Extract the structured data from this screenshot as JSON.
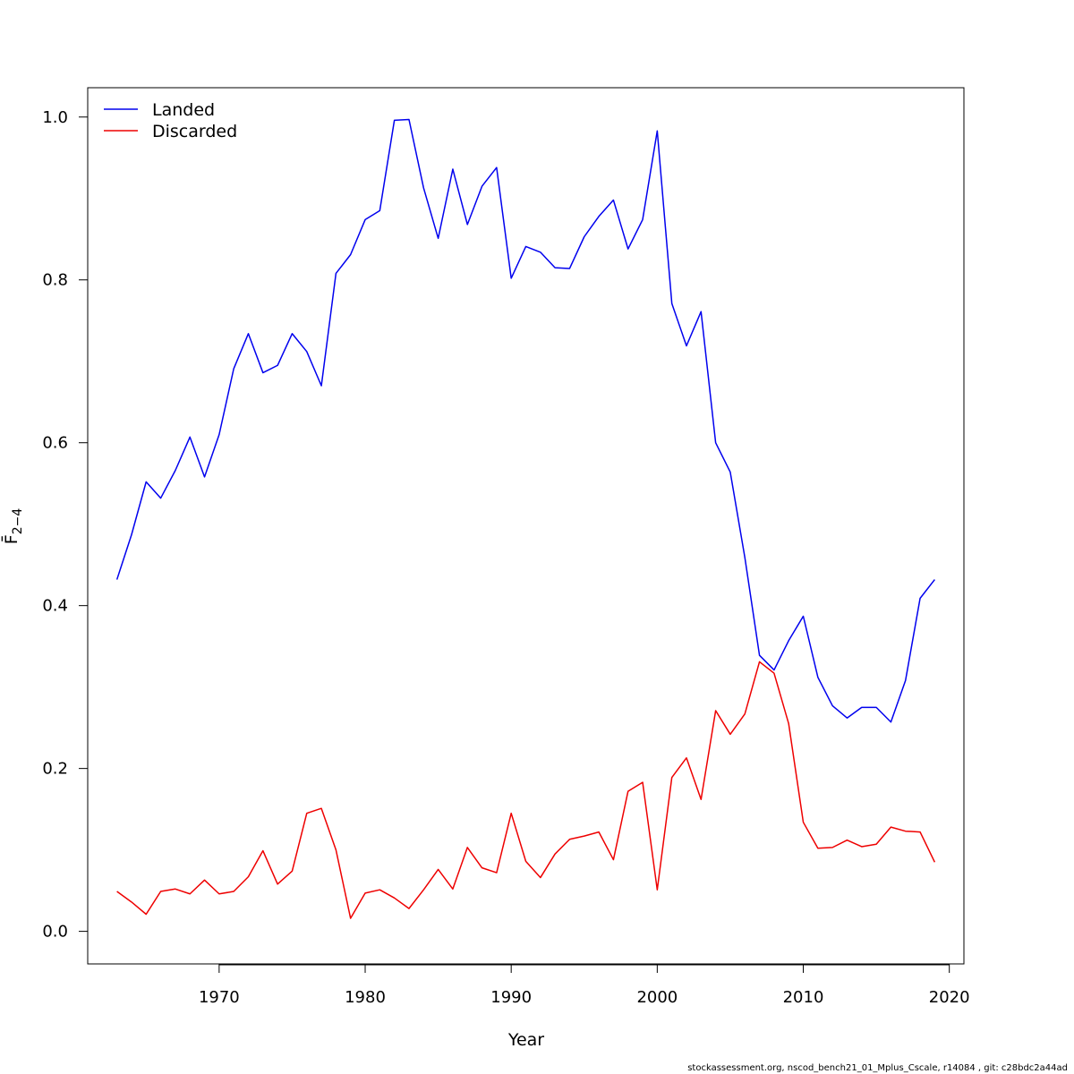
{
  "chart_data": {
    "type": "line",
    "xlabel": "Year",
    "ylabel": "F̄",
    "ylabel_sub": "2−4",
    "xlim": [
      1961,
      2021
    ],
    "ylim": [
      -0.04,
      1.036
    ],
    "x_ticks": [
      1970,
      1980,
      1990,
      2000,
      2010,
      2020
    ],
    "y_ticks": [
      0.0,
      0.2,
      0.4,
      0.6,
      0.8,
      1.0
    ],
    "y_tick_labels": [
      "0.0",
      "0.2",
      "0.4",
      "0.6",
      "0.8",
      "1.0"
    ],
    "grid": false,
    "legend_position": "top-left",
    "x": [
      1963,
      1964,
      1965,
      1966,
      1967,
      1968,
      1969,
      1970,
      1971,
      1972,
      1973,
      1974,
      1975,
      1976,
      1977,
      1978,
      1979,
      1980,
      1981,
      1982,
      1983,
      1984,
      1985,
      1986,
      1987,
      1988,
      1989,
      1990,
      1991,
      1992,
      1993,
      1994,
      1995,
      1996,
      1997,
      1998,
      1999,
      2000,
      2001,
      2002,
      2003,
      2004,
      2005,
      2006,
      2007,
      2008,
      2009,
      2010,
      2011,
      2012,
      2013,
      2014,
      2015,
      2016,
      2017,
      2018,
      2019
    ],
    "series": [
      {
        "name": "Landed",
        "color": "#0000ee",
        "values": [
          0.432,
          0.487,
          0.552,
          0.532,
          0.566,
          0.607,
          0.558,
          0.61,
          0.691,
          0.734,
          0.686,
          0.695,
          0.734,
          0.712,
          0.67,
          0.808,
          0.831,
          0.874,
          0.885,
          0.996,
          0.997,
          0.913,
          0.851,
          0.936,
          0.868,
          0.915,
          0.938,
          0.802,
          0.841,
          0.834,
          0.815,
          0.814,
          0.853,
          0.878,
          0.898,
          0.838,
          0.874,
          0.983,
          0.771,
          0.719,
          0.761,
          0.6,
          0.564,
          0.459,
          0.339,
          0.321,
          0.357,
          0.387,
          0.312,
          0.277,
          0.262,
          0.275,
          0.275,
          0.257,
          0.308,
          0.409,
          0.432
        ]
      },
      {
        "name": "Discarded",
        "color": "#ee0000",
        "values": [
          0.049,
          0.036,
          0.021,
          0.049,
          0.052,
          0.046,
          0.063,
          0.046,
          0.049,
          0.067,
          0.099,
          0.058,
          0.074,
          0.145,
          0.151,
          0.1,
          0.016,
          0.047,
          0.051,
          0.041,
          0.028,
          0.051,
          0.076,
          0.052,
          0.103,
          0.078,
          0.072,
          0.145,
          0.086,
          0.066,
          0.095,
          0.113,
          0.117,
          0.122,
          0.088,
          0.172,
          0.183,
          0.051,
          0.189,
          0.213,
          0.162,
          0.271,
          0.242,
          0.267,
          0.331,
          0.317,
          0.255,
          0.134,
          0.102,
          0.103,
          0.112,
          0.104,
          0.107,
          0.128,
          0.123,
          0.122,
          0.085
        ]
      }
    ]
  },
  "footer_text": "stockassessment.org, nscod_bench21_01_Mplus_Cscale, r14084 , git: c28bdc2a44ad"
}
